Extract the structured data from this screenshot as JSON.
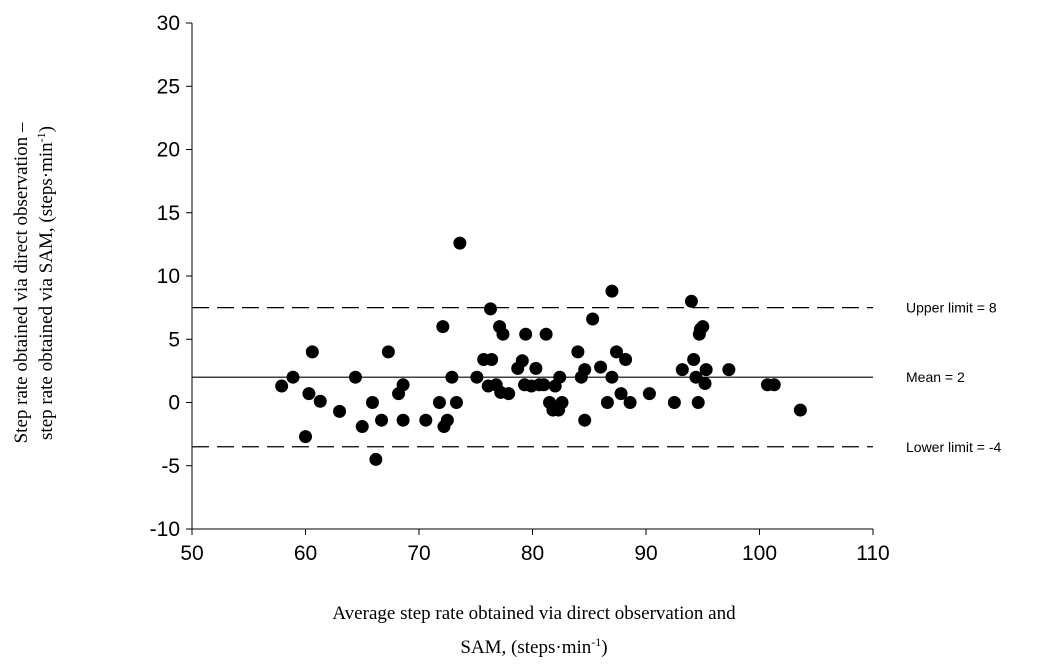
{
  "chart_data": {
    "type": "scatter",
    "title": "",
    "xlabel_line1": "Average step rate obtained via direct observation and",
    "xlabel_line2": "SAM, (steps·min",
    "xlabel_sup": "-1",
    "xlabel_close": ")",
    "ylabel_line1": "Step rate obtained via direct observation –",
    "ylabel_line2": "step rate obtained via SAM, (steps·min",
    "ylabel_sup": "-1",
    "ylabel_close": ")",
    "xlim": [
      50,
      110
    ],
    "ylim": [
      -10,
      30
    ],
    "xticks": [
      "50",
      "60",
      "70",
      "80",
      "90",
      "100",
      "110"
    ],
    "yticks": [
      "-10",
      "-5",
      "0",
      "5",
      "10",
      "15",
      "20",
      "25",
      "30"
    ],
    "grid": false,
    "reference_lines": [
      {
        "label": "Upper limit = 8",
        "y": 7.5,
        "style": "dashed"
      },
      {
        "label": "Mean = 2",
        "y": 2.0,
        "style": "solid"
      },
      {
        "label": "Lower limit = -4",
        "y": -3.5,
        "style": "dashed"
      }
    ],
    "points": [
      [
        57.9,
        1.3
      ],
      [
        58.9,
        2.0
      ],
      [
        60.0,
        -2.7
      ],
      [
        60.3,
        0.7
      ],
      [
        60.6,
        4.0
      ],
      [
        61.3,
        0.1
      ],
      [
        63.0,
        -0.7
      ],
      [
        64.4,
        2.0
      ],
      [
        65.0,
        -1.9
      ],
      [
        65.9,
        0.0
      ],
      [
        66.2,
        -4.5
      ],
      [
        66.7,
        -1.4
      ],
      [
        67.3,
        4.0
      ],
      [
        68.2,
        0.7
      ],
      [
        68.6,
        1.4
      ],
      [
        68.6,
        -1.4
      ],
      [
        70.6,
        -1.4
      ],
      [
        71.8,
        0.0
      ],
      [
        72.1,
        6.0
      ],
      [
        72.2,
        -1.9
      ],
      [
        72.5,
        -1.4
      ],
      [
        72.9,
        2.0
      ],
      [
        73.3,
        0.0
      ],
      [
        73.6,
        12.6
      ],
      [
        75.1,
        2.0
      ],
      [
        75.7,
        3.4
      ],
      [
        76.1,
        1.3
      ],
      [
        76.3,
        7.4
      ],
      [
        76.4,
        3.4
      ],
      [
        76.8,
        1.4
      ],
      [
        77.1,
        6.0
      ],
      [
        77.2,
        0.8
      ],
      [
        77.4,
        5.4
      ],
      [
        77.9,
        0.7
      ],
      [
        78.7,
        2.7
      ],
      [
        79.1,
        3.3
      ],
      [
        79.4,
        5.4
      ],
      [
        79.3,
        1.4
      ],
      [
        79.9,
        1.3
      ],
      [
        80.3,
        2.7
      ],
      [
        80.6,
        1.4
      ],
      [
        81.0,
        1.4
      ],
      [
        81.2,
        5.4
      ],
      [
        81.5,
        0.0
      ],
      [
        81.8,
        -0.6
      ],
      [
        82.0,
        1.3
      ],
      [
        82.3,
        -0.6
      ],
      [
        82.4,
        2.0
      ],
      [
        82.6,
        0.0
      ],
      [
        84.0,
        4.0
      ],
      [
        84.3,
        2.0
      ],
      [
        84.6,
        2.6
      ],
      [
        84.6,
        -1.4
      ],
      [
        85.3,
        6.6
      ],
      [
        86.0,
        2.8
      ],
      [
        86.6,
        0.0
      ],
      [
        87.0,
        8.8
      ],
      [
        87.0,
        2.0
      ],
      [
        87.4,
        4.0
      ],
      [
        87.8,
        0.7
      ],
      [
        88.2,
        3.4
      ],
      [
        88.6,
        0.0
      ],
      [
        90.3,
        0.7
      ],
      [
        92.5,
        0.0
      ],
      [
        93.2,
        2.6
      ],
      [
        94.0,
        8.0
      ],
      [
        94.2,
        3.4
      ],
      [
        94.4,
        2.0
      ],
      [
        94.6,
        0.0
      ],
      [
        94.7,
        5.4
      ],
      [
        94.8,
        5.8
      ],
      [
        95.0,
        6.0
      ],
      [
        95.2,
        1.5
      ],
      [
        95.3,
        2.6
      ],
      [
        97.3,
        2.6
      ],
      [
        100.7,
        1.4
      ],
      [
        101.3,
        1.4
      ],
      [
        103.6,
        -0.6
      ]
    ]
  }
}
